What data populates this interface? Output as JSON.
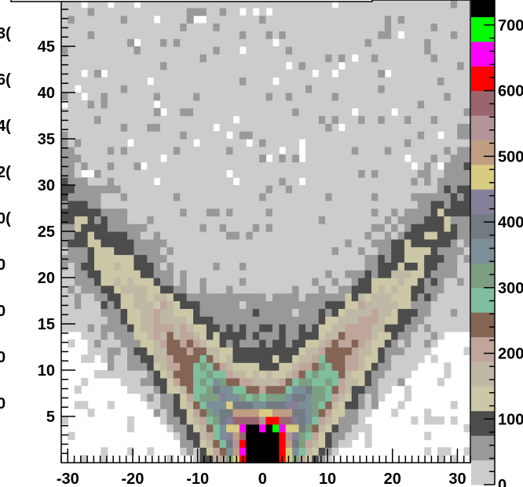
{
  "chart_data": {
    "type": "heatmap",
    "title": "",
    "xlabel": "",
    "ylabel": "",
    "xlim": [
      -31,
      32
    ],
    "ylim": [
      0,
      50
    ],
    "x_ticks": [
      -30,
      -20,
      -10,
      0,
      10,
      20,
      30
    ],
    "x_tick_labels": [
      "-30",
      "-20",
      "-10",
      "0",
      "10",
      "20",
      "30"
    ],
    "y_ticks": [
      5,
      10,
      15,
      20,
      25,
      30,
      35,
      40,
      45
    ],
    "y_tick_labels": [
      "5",
      "10",
      "15",
      "20",
      "25",
      "30",
      "35",
      "40",
      "45"
    ],
    "colorbar": {
      "range": [
        0,
        750
      ],
      "ticks": [
        0,
        100,
        200,
        300,
        400,
        500,
        600,
        700
      ],
      "tick_labels": [
        "0",
        "100",
        "200",
        "300",
        "400",
        "500",
        "600",
        "700"
      ],
      "palette": [
        "#cccccc",
        "#999999",
        "#4c4c4c",
        "#ccc7a6",
        "#bfb8a4",
        "#bfa59b",
        "#856454",
        "#7fbf9f",
        "#7e9e82",
        "#7b8f99",
        "#727a82",
        "#867f99",
        "#d8cc82",
        "#bf9e82",
        "#b39498",
        "#996670",
        "#ff0000",
        "#ff00ff",
        "#00ff00",
        "#000000"
      ]
    },
    "density_model": {
      "description": "2D histogram; counts increase toward (0,0) and along a V-shaped band",
      "apex": [
        0,
        1
      ],
      "band_peak_value": 720,
      "background_value": 15
    },
    "marker": {
      "x": 0,
      "y": 0.8
    }
  },
  "left_cut_labels": [
    "3(",
    "6(",
    "4(",
    "2(",
    "0(",
    "0",
    "0",
    "0",
    "0"
  ]
}
